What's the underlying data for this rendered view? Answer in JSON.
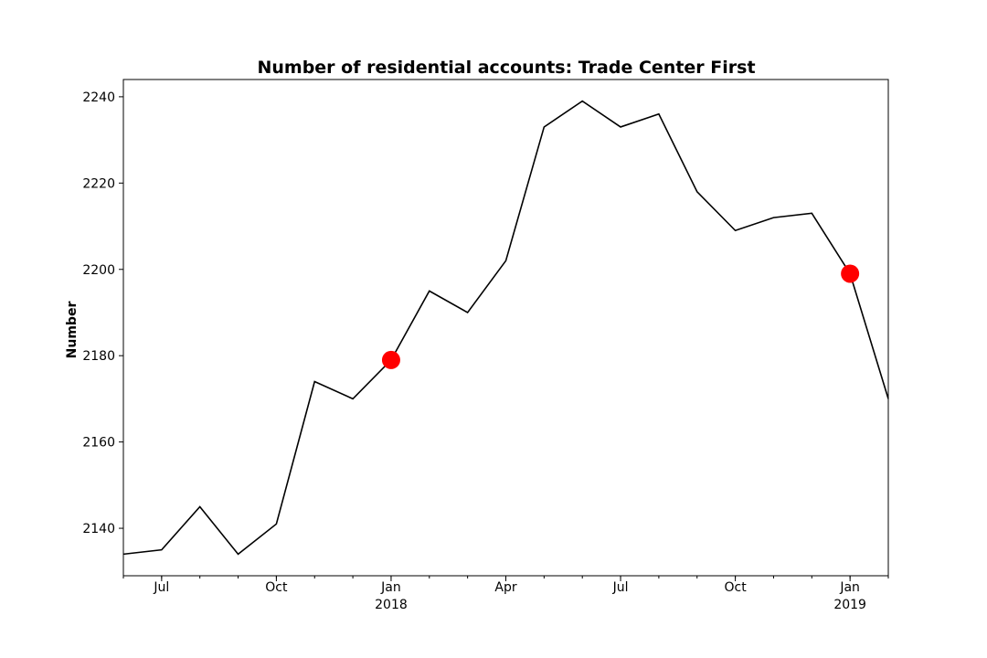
{
  "chart_data": {
    "type": "line",
    "title": "Number of residential accounts: Trade Center First",
    "xlabel": "",
    "ylabel": "Number",
    "x": [
      "2017-06",
      "2017-07",
      "2017-08",
      "2017-09",
      "2017-10",
      "2017-11",
      "2017-12",
      "2018-01",
      "2018-02",
      "2018-03",
      "2018-04",
      "2018-05",
      "2018-06",
      "2018-07",
      "2018-08",
      "2018-09",
      "2018-10",
      "2018-11",
      "2018-12",
      "2019-01",
      "2019-02"
    ],
    "series": [
      {
        "values": [
          2134,
          2135,
          2145,
          2134,
          2141,
          2174,
          2170,
          2179,
          2195,
          2190,
          2202,
          2233,
          2239,
          2233,
          2236,
          2218,
          2209,
          2212,
          2213,
          2199,
          2170
        ],
        "color": "#000000"
      }
    ],
    "highlights": [
      {
        "x": "2018-01",
        "y": 2179,
        "color": "#ff0000"
      },
      {
        "x": "2019-01",
        "y": 2199,
        "color": "#ff0000"
      }
    ],
    "ylim": [
      2129,
      2244
    ],
    "yticks": [
      "2140",
      "2160",
      "2180",
      "2200",
      "2220",
      "2240"
    ],
    "xticks": [
      {
        "x": "2017-07",
        "label": "Jul",
        "sublabel": ""
      },
      {
        "x": "2017-10",
        "label": "Oct",
        "sublabel": ""
      },
      {
        "x": "2018-01",
        "label": "Jan",
        "sublabel": "2018"
      },
      {
        "x": "2018-04",
        "label": "Apr",
        "sublabel": ""
      },
      {
        "x": "2018-07",
        "label": "Jul",
        "sublabel": ""
      },
      {
        "x": "2018-10",
        "label": "Oct",
        "sublabel": ""
      },
      {
        "x": "2019-01",
        "label": "Jan",
        "sublabel": "2019"
      }
    ],
    "grid": false,
    "legend": "none"
  }
}
